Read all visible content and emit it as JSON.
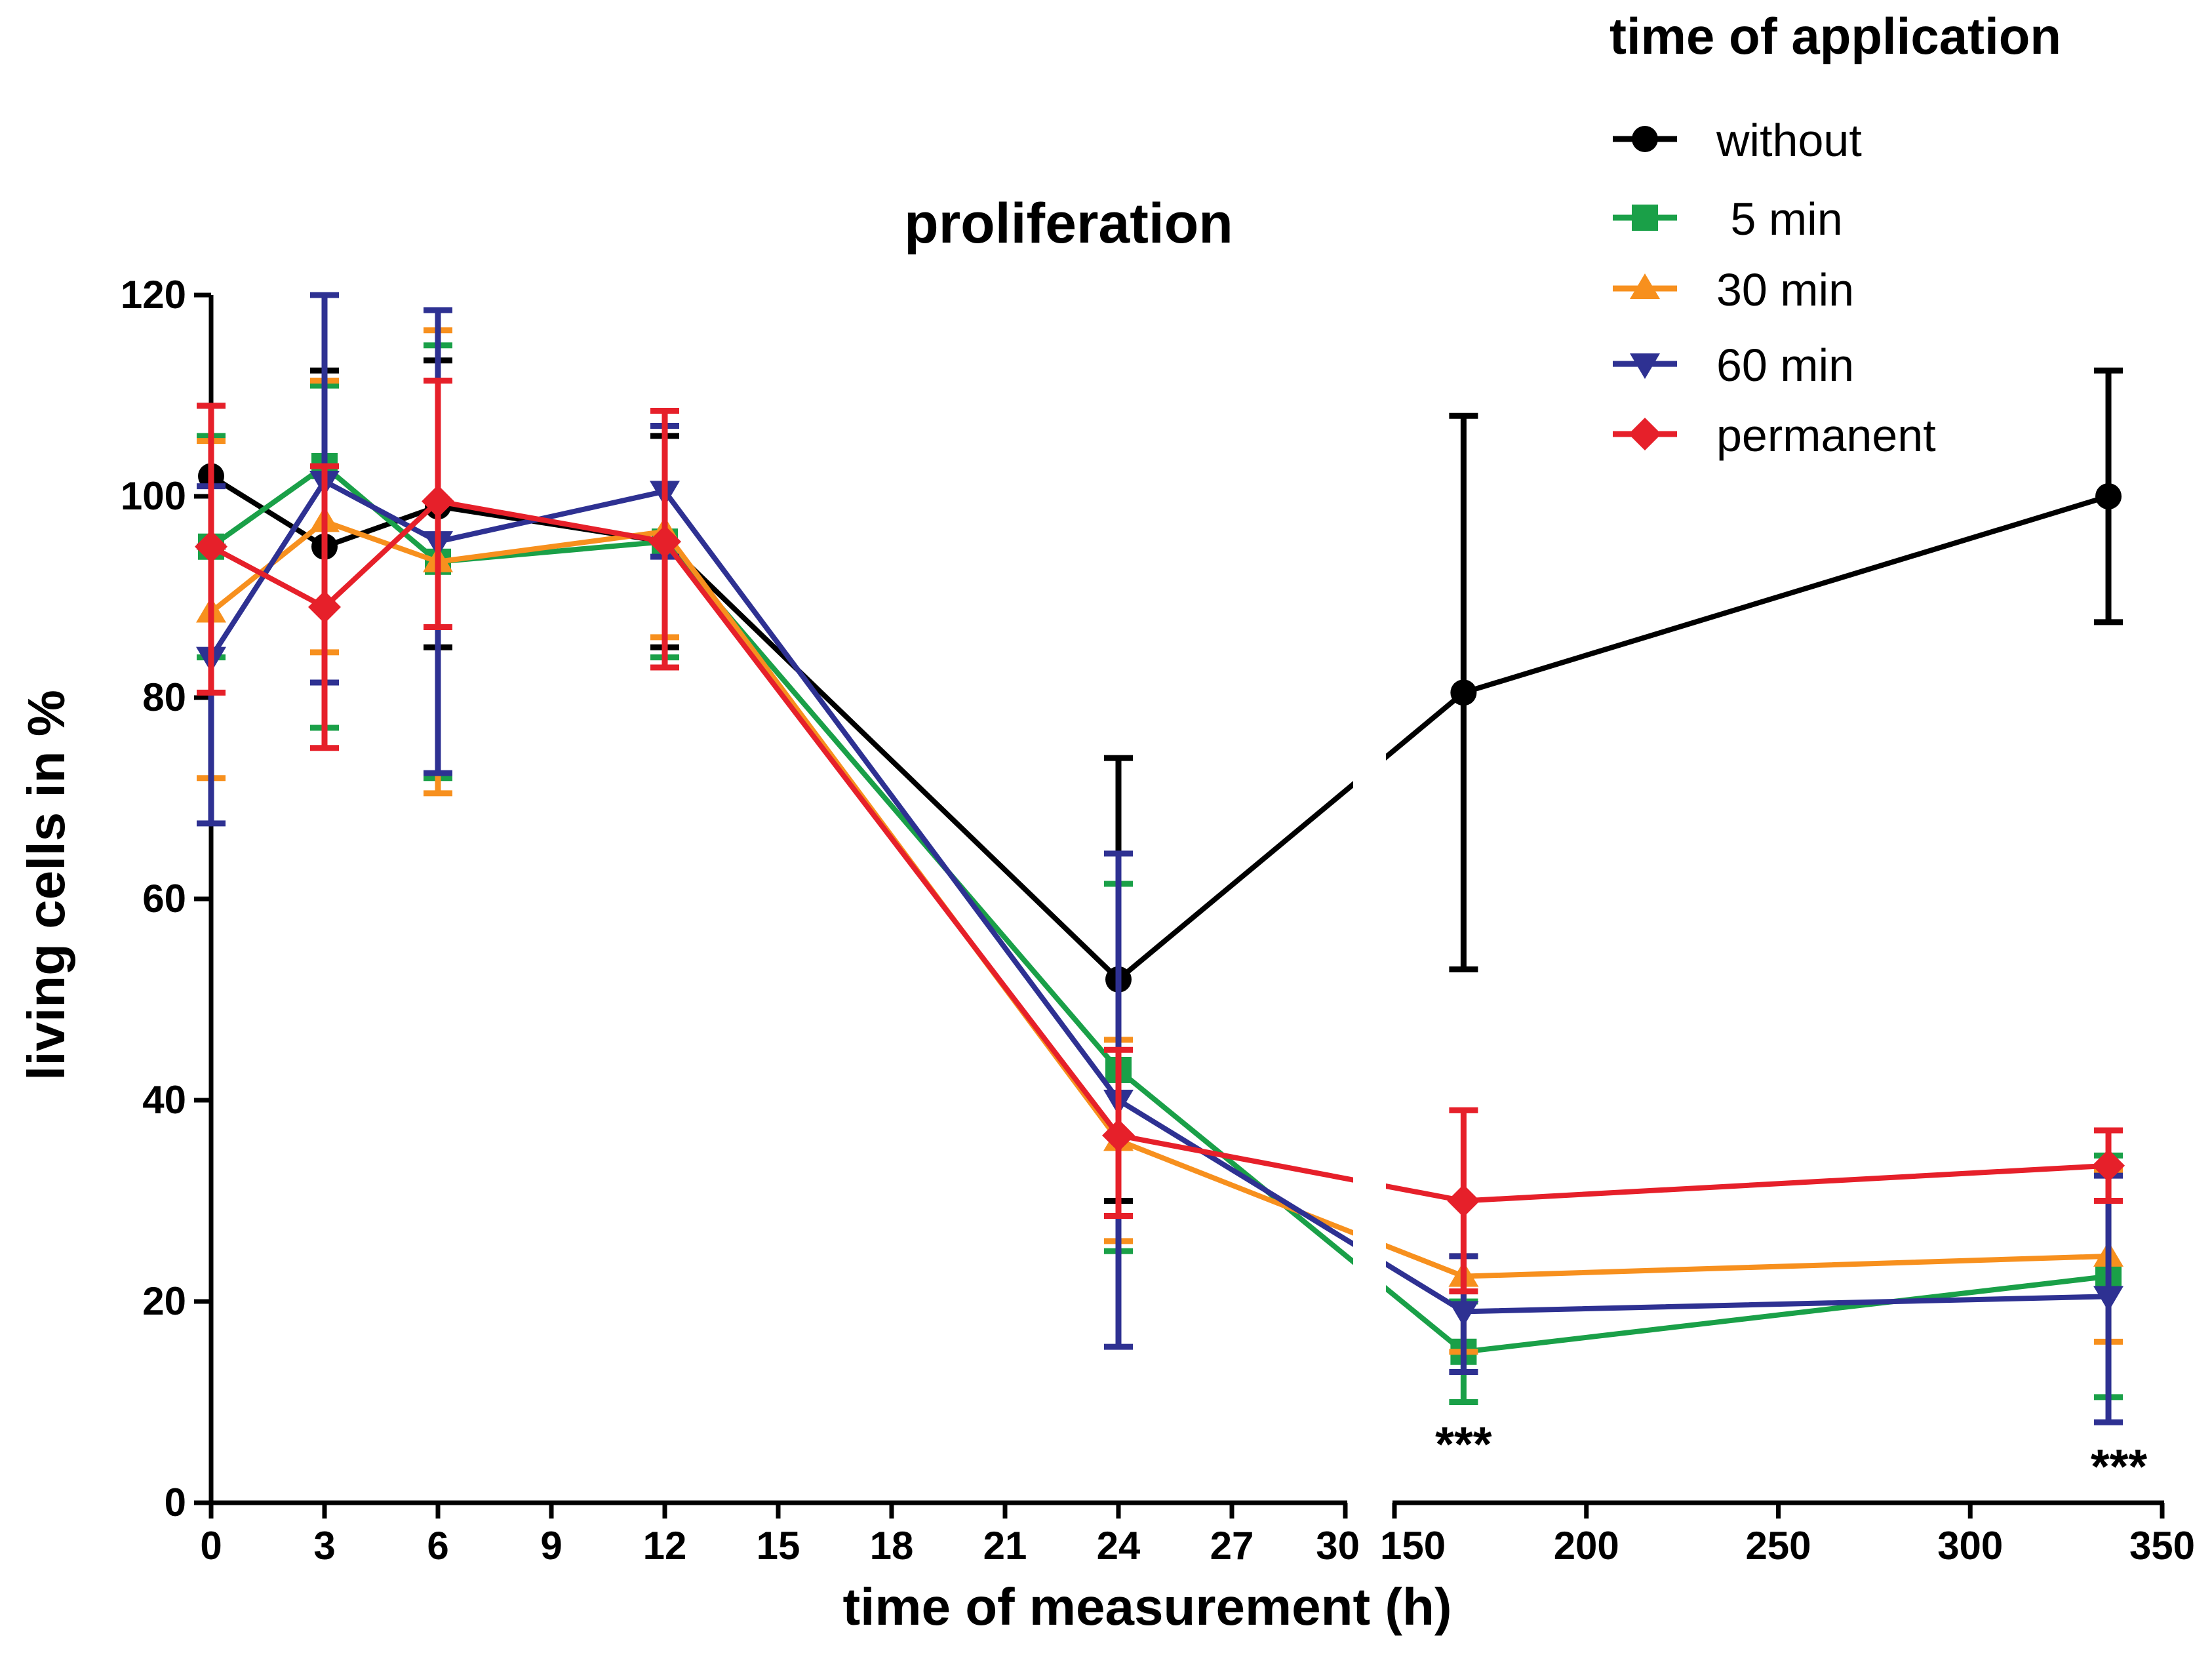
{
  "chart_data": {
    "type": "line",
    "title": "proliferation",
    "xlabel": "time of measurement (h)",
    "ylabel": "living cells in %",
    "ylim": [
      0,
      120
    ],
    "y_ticks": [
      0,
      20,
      40,
      60,
      80,
      100,
      120
    ],
    "x_segments": [
      {
        "range": [
          0,
          30
        ],
        "ticks": [
          0,
          3,
          6,
          9,
          12,
          15,
          18,
          21,
          24,
          27,
          30
        ]
      },
      {
        "range": [
          150,
          350
        ],
        "ticks": [
          150,
          200,
          250,
          300,
          350
        ]
      }
    ],
    "x_tick_labels": [
      "0",
      "3",
      "6",
      "9",
      "12",
      "15",
      "18",
      "21",
      "24",
      "27",
      "30",
      "150",
      "200",
      "250",
      "300",
      "350"
    ],
    "legend": {
      "title": "time of application",
      "placement": "top-right"
    },
    "series": [
      {
        "name": "without",
        "color": "#000000",
        "marker": "circle",
        "x": [
          0,
          3,
          6,
          12,
          24,
          168,
          336
        ],
        "y": [
          102.0,
          95.0,
          99.0,
          95.5,
          52.0,
          80.5,
          100.0
        ],
        "err_low": [
          95.0,
          77.0,
          85.0,
          85.0,
          30.0,
          53.0,
          87.5
        ],
        "err_high": [
          109.0,
          112.5,
          113.5,
          106.0,
          74.0,
          108.0,
          112.5
        ]
      },
      {
        "name": " 5 min",
        "color": "#1aa048",
        "marker": "square",
        "x": [
          0,
          3,
          6,
          12,
          24,
          168,
          336
        ],
        "y": [
          95.0,
          103.0,
          93.5,
          95.5,
          43.0,
          15.0,
          22.5
        ],
        "err_low": [
          84.0,
          77.0,
          72.0,
          84.0,
          25.0,
          10.0,
          10.5
        ],
        "err_high": [
          106.0,
          111.0,
          115.0,
          107.0,
          61.5,
          20.0,
          34.5
        ]
      },
      {
        "name": "30 min",
        "color": "#f7901e",
        "marker": "triangle-up",
        "x": [
          0,
          3,
          6,
          12,
          24,
          168,
          336
        ],
        "y": [
          88.5,
          97.5,
          93.5,
          96.5,
          36.0,
          22.5,
          24.5
        ],
        "err_low": [
          72.0,
          84.5,
          70.5,
          86.0,
          26.0,
          15.0,
          16.0
        ],
        "err_high": [
          105.5,
          111.5,
          116.5,
          107.0,
          46.0,
          24.5,
          33.0
        ]
      },
      {
        "name": "60 min",
        "color": "#2e3192",
        "marker": "triangle-down",
        "x": [
          0,
          3,
          6,
          12,
          24,
          168,
          336
        ],
        "y": [
          84.0,
          101.5,
          95.5,
          100.5,
          40.0,
          19.0,
          20.5
        ],
        "err_low": [
          67.5,
          81.5,
          72.5,
          94.0,
          15.5,
          13.0,
          8.0
        ],
        "err_high": [
          101.0,
          120.0,
          118.5,
          107.0,
          64.5,
          24.5,
          32.5
        ]
      },
      {
        "name": "permanent",
        "color": "#e6202a",
        "marker": "diamond",
        "x": [
          0,
          3,
          6,
          12,
          24,
          168,
          336
        ],
        "y": [
          95.0,
          89.0,
          99.5,
          95.5,
          36.5,
          30.0,
          33.5
        ],
        "err_low": [
          80.5,
          75.0,
          87.0,
          83.0,
          28.5,
          21.0,
          30.0
        ],
        "err_high": [
          109.0,
          103.0,
          111.5,
          108.5,
          45.0,
          39.0,
          37.0
        ]
      }
    ],
    "annotations": [
      {
        "text": "***",
        "x": 168
      },
      {
        "text": "***",
        "x": 336
      }
    ]
  }
}
